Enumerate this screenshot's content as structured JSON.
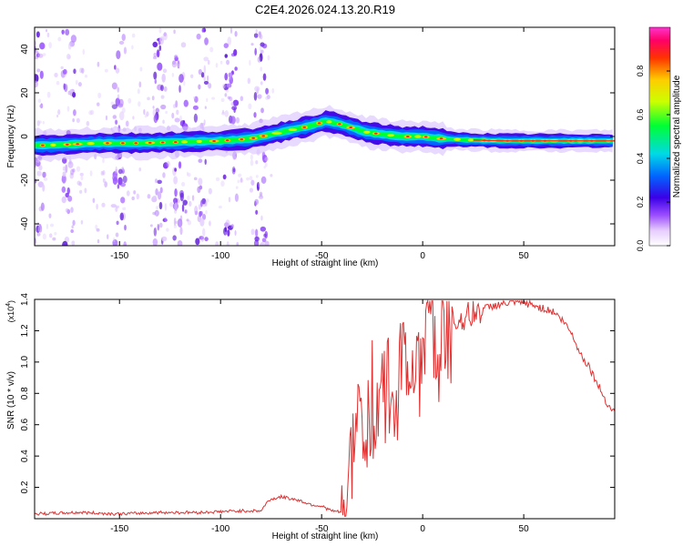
{
  "figure": {
    "title": "C2E4.2026.024.13.20.R19"
  },
  "chart_data": [
    {
      "type": "heatmap",
      "title": "C2E4.2026.024.13.20.R19",
      "xlabel": "Height of straight line (km)",
      "ylabel": "Frequency (Hz)",
      "xlim": [
        -192,
        95
      ],
      "ylim": [
        -50,
        50
      ],
      "xticks": [
        -150,
        -100,
        -50,
        0,
        50
      ],
      "yticks": [
        -40,
        -20,
        0,
        20,
        40
      ],
      "colorbar": {
        "label": "Normalized spectral amplitude",
        "range": [
          0,
          1
        ],
        "ticks": [
          0.0,
          0.2,
          0.4,
          0.6,
          0.8
        ],
        "tick_labels": [
          "0.0",
          "0.2",
          "0.4",
          "0.6",
          "0.8"
        ]
      },
      "ridge": {
        "description": "Doppler ridge frequency (Hz) vs height (km)",
        "x": [
          -185,
          -160,
          -140,
          -120,
          -100,
          -85,
          -75,
          -65,
          -55,
          -48,
          -42,
          -35,
          -28,
          -20,
          -10,
          0,
          10,
          20,
          40,
          60,
          80,
          92
        ],
        "y": [
          -4,
          -3,
          -3,
          -2.5,
          -2,
          -1,
          1,
          3,
          5,
          7,
          6,
          4,
          2,
          1,
          0,
          0,
          -1,
          -1.5,
          -2,
          -2,
          -2,
          -2
        ]
      },
      "noise_bands_x": [
        -190,
        -175,
        -150,
        -130,
        -120,
        -110,
        -95,
        -80
      ]
    },
    {
      "type": "line",
      "title": "",
      "xlabel": "Height of straight line (km)",
      "ylabel": "SNR (10 * v/v)",
      "y_multiplier": "(x10^4)",
      "multiplier_base": "(x10",
      "multiplier_exp": "4",
      "multiplier_close": ")",
      "xlim": [
        -192,
        95
      ],
      "ylim": [
        0,
        1.4
      ],
      "xticks": [
        -150,
        -100,
        -50,
        0,
        50
      ],
      "yticks": [
        0.2,
        0.4,
        0.6,
        0.8,
        1.0,
        1.2,
        1.4
      ],
      "ytick_labels": [
        "0.2",
        "0.4",
        "0.6",
        "0.8",
        "1.0",
        "1.2",
        "1.4"
      ],
      "series": [
        {
          "name": "SNR",
          "color": "#e03030",
          "x": [
            -192,
            -170,
            -150,
            -130,
            -110,
            -90,
            -80,
            -76,
            -70,
            -62,
            -55,
            -50,
            -45,
            -40,
            -37,
            -35,
            -32,
            -30,
            -28,
            -25,
            -22,
            -20,
            -18,
            -15,
            -12,
            -10,
            -8,
            -5,
            -2,
            0,
            2,
            5,
            8,
            10,
            12,
            15,
            20,
            25,
            30,
            35,
            40,
            45,
            50,
            55,
            60,
            65,
            68,
            72,
            75,
            78,
            82,
            85,
            88,
            92,
            95
          ],
          "y": [
            0.03,
            0.04,
            0.03,
            0.04,
            0.04,
            0.05,
            0.05,
            0.12,
            0.14,
            0.12,
            0.09,
            0.08,
            0.05,
            0.04,
            0.15,
            0.4,
            0.55,
            0.6,
            0.62,
            0.7,
            0.75,
            0.78,
            0.82,
            0.85,
            0.88,
            0.9,
            0.95,
            1.0,
            1.05,
            1.07,
            1.1,
            1.12,
            1.15,
            1.2,
            1.22,
            1.25,
            1.28,
            1.31,
            1.34,
            1.36,
            1.37,
            1.38,
            1.38,
            1.36,
            1.34,
            1.32,
            1.28,
            1.22,
            1.15,
            1.05,
            0.98,
            0.9,
            0.82,
            0.72,
            0.68
          ]
        }
      ]
    }
  ]
}
